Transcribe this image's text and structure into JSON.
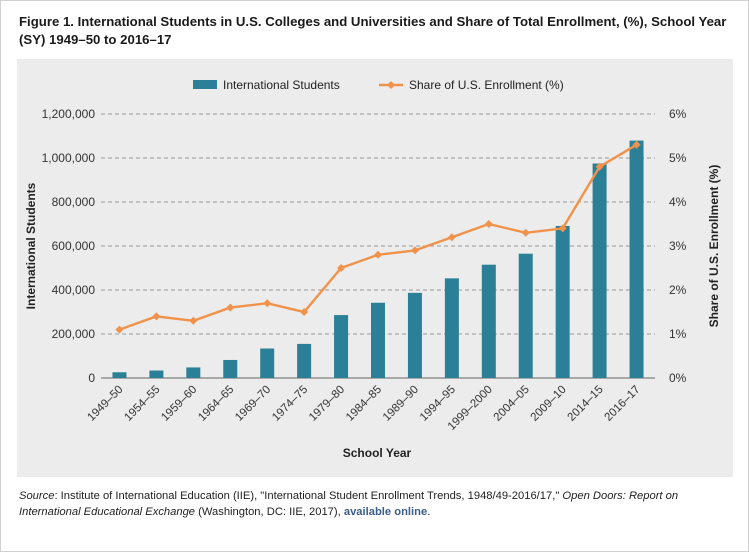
{
  "title": "Figure 1. International Students in U.S. Colleges and Universities and Share of Total Enrollment, (%), School Year (SY) 1949–50 to 2016–17",
  "source": {
    "label": "Source",
    "text": ": Institute of International Education (IIE), \"International Student Enrollment Trends, 1948/49-2016/17,\" ",
    "italic": "Open Doors: Report on International Educational Exchange",
    "text2": " (Washington, DC: IIE, 2017), ",
    "link": "available online",
    "end": "."
  },
  "colors": {
    "bar": "#2b7f96",
    "line": "#f0924a",
    "grid": "#9a9a9a",
    "panel": "#ececec"
  },
  "chart_data": {
    "type": "bar",
    "xlabel": "School Year",
    "ylabel": "International Students",
    "y2label": "Share of U.S. Enrollment (%)",
    "ylim": [
      0,
      1200000
    ],
    "y2lim": [
      0,
      6
    ],
    "yticks": [
      "0",
      "200,000",
      "400,000",
      "600,000",
      "800,000",
      "1,000,000",
      "1,200,000"
    ],
    "y2ticks": [
      "0%",
      "1%",
      "2%",
      "3%",
      "4%",
      "5%",
      "6%"
    ],
    "grid": true,
    "legend_position": "top-center",
    "categories": [
      "1949–50",
      "1954–55",
      "1959–60",
      "1964–65",
      "1969–70",
      "1974–75",
      "1979–80",
      "1984–85",
      "1989–90",
      "1994–95",
      "1999–2000",
      "2004–05",
      "2009–10",
      "2014–15",
      "2016–17"
    ],
    "series": [
      {
        "name": "International Students",
        "type": "bar",
        "axis": "left",
        "values": [
          26000,
          34000,
          48000,
          82000,
          134000,
          155000,
          286000,
          342000,
          387000,
          453000,
          515000,
          565000,
          691000,
          975000,
          1079000
        ]
      },
      {
        "name": "Share of U.S. Enrollment (%)",
        "type": "line",
        "axis": "right",
        "values": [
          1.1,
          1.4,
          1.3,
          1.6,
          1.7,
          1.5,
          2.5,
          2.8,
          2.9,
          3.2,
          3.5,
          3.3,
          3.4,
          4.8,
          5.3
        ]
      }
    ]
  }
}
